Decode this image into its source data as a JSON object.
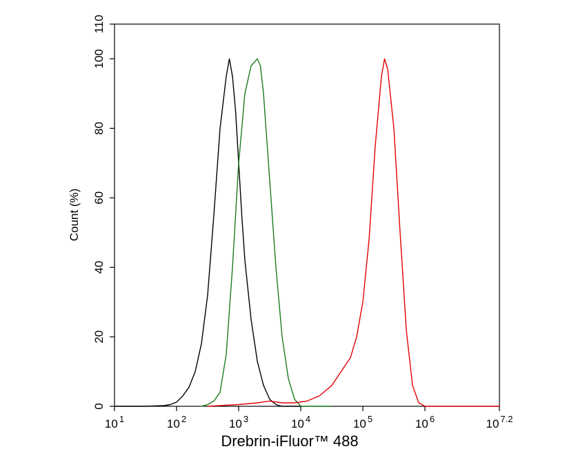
{
  "chart_data": {
    "type": "line",
    "title": "",
    "xlabel": "Drebrin-iFluor™ 488",
    "ylabel": "Count  (%)",
    "x_scale": "log10",
    "xlim": [
      1,
      7.2
    ],
    "ylim": [
      0,
      110
    ],
    "y_ticks": [
      "0",
      "20",
      "40",
      "60",
      "80",
      "100",
      "110"
    ],
    "x_ticks": [
      {
        "base": "10",
        "exp": "1"
      },
      {
        "base": "10",
        "exp": "2"
      },
      {
        "base": "10",
        "exp": "3"
      },
      {
        "base": "10",
        "exp": "4"
      },
      {
        "base": "10",
        "exp": "5"
      },
      {
        "base": "10",
        "exp": "6"
      },
      {
        "base": "10",
        "exp": "7.2"
      }
    ],
    "grid": false,
    "legend": "none",
    "series": [
      {
        "color": "#000000",
        "points": [
          [
            1.0,
            0
          ],
          [
            1.5,
            0
          ],
          [
            1.8,
            0.2
          ],
          [
            1.9,
            0.5
          ],
          [
            2.0,
            1.2
          ],
          [
            2.1,
            3
          ],
          [
            2.2,
            5.5
          ],
          [
            2.3,
            10
          ],
          [
            2.4,
            18
          ],
          [
            2.5,
            32
          ],
          [
            2.6,
            55
          ],
          [
            2.7,
            80
          ],
          [
            2.8,
            95
          ],
          [
            2.85,
            100
          ],
          [
            2.9,
            95
          ],
          [
            2.95,
            85
          ],
          [
            3.0,
            70
          ],
          [
            3.05,
            55
          ],
          [
            3.1,
            42
          ],
          [
            3.2,
            25
          ],
          [
            3.3,
            13
          ],
          [
            3.4,
            6
          ],
          [
            3.5,
            2
          ],
          [
            3.6,
            0.5
          ],
          [
            3.7,
            0
          ],
          [
            4.0,
            0
          ]
        ]
      },
      {
        "color": "#1a7a1a",
        "points": [
          [
            2.4,
            0
          ],
          [
            2.5,
            0.5
          ],
          [
            2.6,
            1.5
          ],
          [
            2.7,
            4
          ],
          [
            2.8,
            15
          ],
          [
            2.9,
            40
          ],
          [
            3.0,
            70
          ],
          [
            3.1,
            90
          ],
          [
            3.2,
            98
          ],
          [
            3.3,
            100
          ],
          [
            3.35,
            98
          ],
          [
            3.4,
            90
          ],
          [
            3.5,
            65
          ],
          [
            3.6,
            40
          ],
          [
            3.7,
            20
          ],
          [
            3.8,
            8
          ],
          [
            3.9,
            2
          ],
          [
            4.0,
            0
          ],
          [
            4.5,
            0
          ]
        ]
      },
      {
        "color": "#e00000",
        "points": [
          [
            2.5,
            0
          ],
          [
            3.0,
            0.5
          ],
          [
            3.3,
            1
          ],
          [
            3.5,
            1.5
          ],
          [
            3.7,
            1
          ],
          [
            3.9,
            1
          ],
          [
            4.1,
            1.5
          ],
          [
            4.3,
            3
          ],
          [
            4.5,
            6
          ],
          [
            4.65,
            10
          ],
          [
            4.8,
            14
          ],
          [
            4.9,
            20
          ],
          [
            5.0,
            30
          ],
          [
            5.1,
            48
          ],
          [
            5.2,
            75
          ],
          [
            5.3,
            95
          ],
          [
            5.35,
            100
          ],
          [
            5.4,
            97
          ],
          [
            5.5,
            80
          ],
          [
            5.6,
            50
          ],
          [
            5.7,
            22
          ],
          [
            5.8,
            6
          ],
          [
            5.9,
            1
          ],
          [
            6.0,
            0
          ],
          [
            7.2,
            0
          ]
        ]
      }
    ]
  }
}
